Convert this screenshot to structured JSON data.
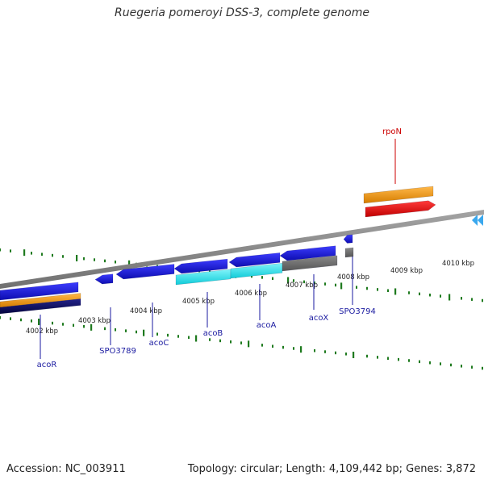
{
  "title": "Ruegeria pomeroyi DSS-3, complete genome",
  "footer": {
    "accession": "Accession: NC_003911",
    "summary": "Topology: circular; Length: 4,109,442 bp; Genes: 3,872"
  },
  "ruler_labels": [
    "4002 kbp",
    "4003 kbp",
    "4004 kbp",
    "4005 kbp",
    "4006 kbp",
    "4007 kbp",
    "4008 kbp",
    "4009 kbp",
    "4010 kbp"
  ],
  "genes": [
    "acoR",
    "SPO3789",
    "acoC",
    "acoB",
    "acoA",
    "acoX",
    "SPO3794",
    "rpoN"
  ],
  "colors": {
    "background": "#ffffff",
    "tick_green": "#1e7a1e",
    "label_gene_blue": "#1a1aa0",
    "label_gene_red": "#cc0000",
    "backbone": "#8c8c8c",
    "feature_blue": "#1a1ae0",
    "feature_navy": "#0a0a60",
    "feature_orange": "#f29a12",
    "feature_red": "#ee0000",
    "feature_cyan": "#22e5f0",
    "feature_gray": "#707070",
    "feature_lightblue": "#3aa8ee"
  },
  "icons": {
    "right_edge_marker": "double-chevron-left-icon"
  }
}
